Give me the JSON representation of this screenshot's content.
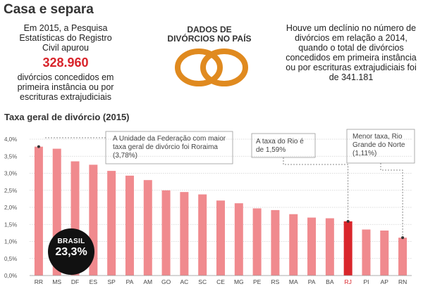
{
  "header": {
    "title": "Casa e separa"
  },
  "left_block": {
    "text_before": "Em 2015, a Pesquisa Estatísticas do Registro Civil apurou",
    "highlight_number": "328.960",
    "text_after": "divórcios concedidos em primeira instância ou por escrituras extrajudiciais"
  },
  "center_block": {
    "title": "DADOS DE DIVÓRCIOS NO PAÍS",
    "ring_color": "#e08a1f"
  },
  "right_block": {
    "text": "Houve um declínio no número de divórcios em relação a 2014, quando o total de divórcios concedidos em primeira instância ou por escrituras extrajudiciais foi de 341.181"
  },
  "chart_data": {
    "type": "bar",
    "title": "Taxa geral de divórcio (2015)",
    "xlabel": "",
    "ylabel": "",
    "ylim": [
      0,
      4
    ],
    "y_ticks": [
      0,
      0.5,
      1,
      1.5,
      2,
      2.5,
      3,
      3.5,
      4
    ],
    "y_tick_labels": [
      "0,0%",
      "0,5%",
      "1,0%",
      "1,5%",
      "2,0%",
      "2,5%",
      "3,0%",
      "3,5%",
      "4,0%"
    ],
    "categories": [
      "RR",
      "MS",
      "DF",
      "ES",
      "SP",
      "PA",
      "AM",
      "GO",
      "AC",
      "SC",
      "CE",
      "MG",
      "PE",
      "RS",
      "MA",
      "PA",
      "BA",
      "RJ",
      "PI",
      "AP",
      "RN"
    ],
    "values": [
      3.78,
      3.72,
      3.35,
      3.25,
      3.07,
      2.93,
      2.8,
      2.5,
      2.45,
      2.38,
      2.2,
      2.12,
      1.97,
      1.92,
      1.8,
      1.7,
      1.68,
      1.59,
      1.35,
      1.32,
      1.11
    ],
    "bar_color": "#f08a8e",
    "highlight_color": "#d9262b",
    "highlight_category_index": 17,
    "grid": true,
    "annotations": [
      {
        "text": "A Unidade da Federação com maior taxa geral de divórcio foi Roraima (3,78%)",
        "category_index": 0
      },
      {
        "text": "A taxa do Rio é de 1,59%",
        "category_index": 17
      },
      {
        "text": "Menor taxa, Rio Grande do Norte (1,11%)",
        "category_index": 20
      }
    ],
    "badge": {
      "label": "BRASIL",
      "value": "23,3%"
    }
  }
}
